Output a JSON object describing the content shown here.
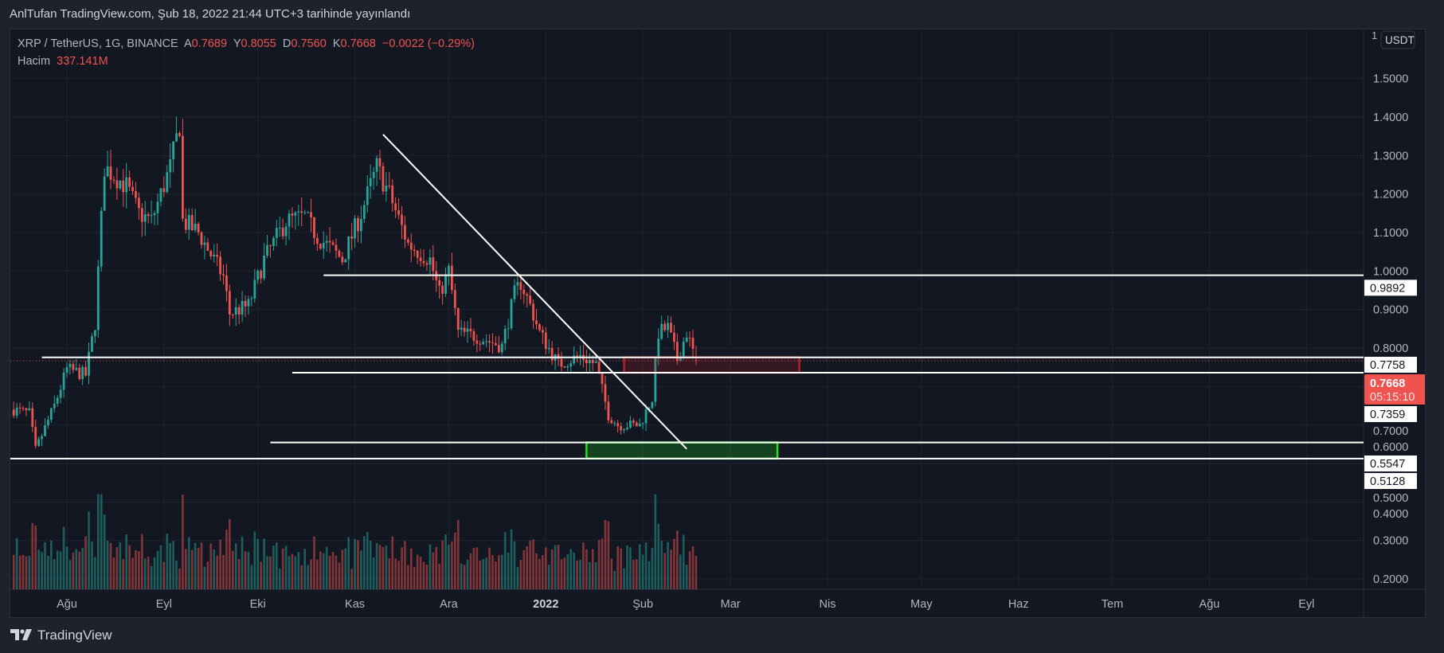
{
  "header": {
    "published": "AnlTufan TradingView.com, Şub 18, 2022 21:44 UTC+3 tarihinde yayınlandı"
  },
  "legend": {
    "symbol": "XRP / TetherUS, 1G, BINANCE",
    "open_label": "A",
    "open": "0.7689",
    "high_label": "Y",
    "high": "0.8055",
    "low_label": "D",
    "low": "0.7560",
    "close_label": "K",
    "close": "0.7668",
    "change": "−0.0022 (−0.29%)",
    "volume_label": "Hacim",
    "volume": "337.141M"
  },
  "footer": {
    "brand": "TradingView"
  },
  "chart_data": {
    "type": "candlestick",
    "currency": "USDT",
    "scale_top_label": "1",
    "ylim": [
      0.2,
      1.55
    ],
    "y_ticks": [
      "0.2000",
      "0.3000",
      "0.4000",
      "0.5000",
      "0.6000",
      "0.7000",
      "0.8000",
      "0.9000",
      "1.0000",
      "1.1000",
      "1.2000",
      "1.3000",
      "1.4000",
      "1.5000"
    ],
    "x_ticks": [
      {
        "label": "Ağu",
        "day": 0
      },
      {
        "label": "Eyl",
        "day": 31
      },
      {
        "label": "Eki",
        "day": 61
      },
      {
        "label": "Kas",
        "day": 92
      },
      {
        "label": "Ara",
        "day": 122
      },
      {
        "label": "2022",
        "day": 153,
        "bold": true
      },
      {
        "label": "Şub",
        "day": 184
      },
      {
        "label": "Mar",
        "day": 212
      },
      {
        "label": "Nis",
        "day": 243
      },
      {
        "label": "May",
        "day": 273
      },
      {
        "label": "Haz",
        "day": 304
      },
      {
        "label": "Tem",
        "day": 334
      },
      {
        "label": "Ağu",
        "day": 365
      },
      {
        "label": "Eyl",
        "day": 396
      }
    ],
    "close_keypoints_day_offset_from_aug1": [
      [
        -17,
        0.64
      ],
      [
        -12,
        0.63
      ],
      [
        -10,
        0.535
      ],
      [
        -4,
        0.65
      ],
      [
        0,
        0.745
      ],
      [
        6,
        0.73
      ],
      [
        9,
        0.865
      ],
      [
        12,
        1.27
      ],
      [
        15,
        1.25
      ],
      [
        19,
        1.22
      ],
      [
        23,
        1.15
      ],
      [
        27,
        1.13
      ],
      [
        33,
        1.27
      ],
      [
        36,
        1.38
      ],
      [
        37,
        1.13
      ],
      [
        42,
        1.1
      ],
      [
        50,
        0.985
      ],
      [
        52,
        0.89
      ],
      [
        58,
        0.91
      ],
      [
        63,
        1.03
      ],
      [
        70,
        1.13
      ],
      [
        76,
        1.14
      ],
      [
        80,
        1.09
      ],
      [
        88,
        1.03
      ],
      [
        94,
        1.15
      ],
      [
        99,
        1.27
      ],
      [
        103,
        1.2
      ],
      [
        109,
        1.07
      ],
      [
        116,
        1.03
      ],
      [
        119,
        0.94
      ],
      [
        122,
        1.0
      ],
      [
        125,
        0.84
      ],
      [
        131,
        0.83
      ],
      [
        139,
        0.805
      ],
      [
        143,
        0.94
      ],
      [
        145,
        0.97
      ],
      [
        148,
        0.91
      ],
      [
        151,
        0.84
      ],
      [
        157,
        0.757
      ],
      [
        164,
        0.78
      ],
      [
        169,
        0.757
      ],
      [
        173,
        0.626
      ],
      [
        176,
        0.6
      ],
      [
        183,
        0.6
      ],
      [
        187,
        0.67
      ],
      [
        189,
        0.84
      ],
      [
        192,
        0.853
      ],
      [
        195,
        0.77
      ],
      [
        198,
        0.84
      ],
      [
        201,
        0.7668
      ]
    ],
    "last_candle": {
      "open": 0.7689,
      "high": 0.8055,
      "low": 0.756,
      "close": 0.7668
    },
    "last_price": {
      "value": "0.7668",
      "countdown": "05:15:10"
    },
    "horizontal_levels": [
      {
        "value": 0.9892,
        "label": "0.9892",
        "from_day": 82
      },
      {
        "value": 0.7758,
        "label": "0.7758",
        "from_day": -8
      },
      {
        "value": 0.7359,
        "label": "0.7359",
        "from_day": 72
      },
      {
        "value": 0.5547,
        "label": "0.5547",
        "from_day": 65
      },
      {
        "value": 0.5128,
        "label": "0.5128",
        "from_day": -22
      }
    ],
    "trendline": {
      "from": {
        "day": 101,
        "price": 1.355
      },
      "to": {
        "day": 198,
        "price": 0.538
      }
    },
    "zones": [
      {
        "name": "resistance-zone",
        "from_day": 178,
        "to_day": 234,
        "top": 0.7758,
        "bottom": 0.7359,
        "color": "#b2202a"
      },
      {
        "name": "support-zone",
        "from_day": 166,
        "to_day": 227,
        "top": 0.5547,
        "bottom": 0.5128,
        "color": "#22e022"
      }
    ],
    "colors": {
      "up": "#26a69a",
      "down": "#ef5350",
      "bg": "#131722",
      "grid": "#1e2330",
      "label_bg": "#ffffff"
    }
  }
}
